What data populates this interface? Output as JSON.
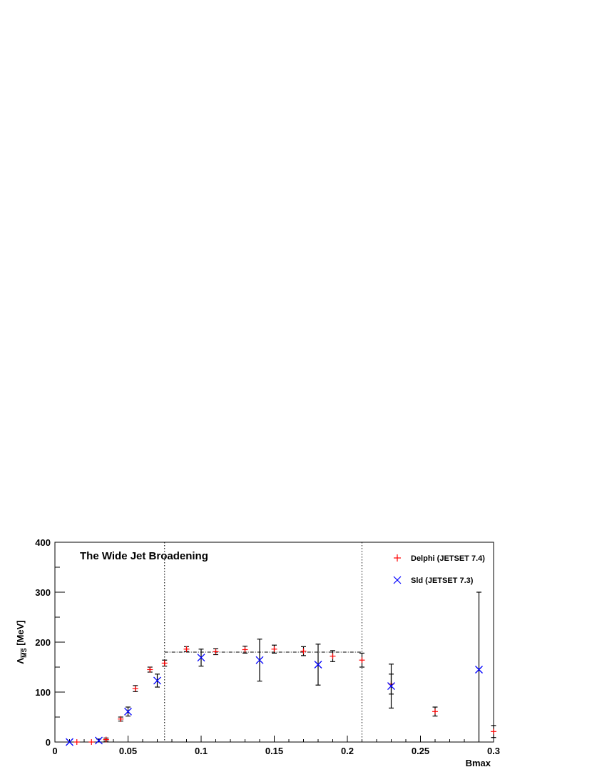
{
  "chart_data": {
    "type": "scatter",
    "title": "The Wide Jet Broadening",
    "xlabel": "Bmax",
    "ylabel_symbol": "Λ",
    "ylabel_sub": "MS",
    "ylabel_unit": "[MeV]",
    "xlim": [
      0,
      0.3
    ],
    "ylim": [
      0,
      400
    ],
    "x_ticks": [
      0,
      0.05,
      0.1,
      0.15,
      0.2,
      0.25,
      0.3
    ],
    "x_tick_labels": [
      "0",
      "0.05",
      "0.1",
      "0.15",
      "0.2",
      "0.25",
      "0.3"
    ],
    "y_ticks": [
      0,
      100,
      200,
      300,
      400
    ],
    "y_tick_labels": [
      "0",
      "100",
      "200",
      "300",
      "400"
    ],
    "grid": false,
    "legend_position": "top-right",
    "vertical_lines": [
      0.075,
      0.21
    ],
    "fit_line": {
      "x": [
        0.075,
        0.21
      ],
      "y": 180
    },
    "series": [
      {
        "name": "Delphi (JETSET 7.4)",
        "marker": "plus",
        "color": "#ff0000",
        "points": [
          {
            "x": 0.015,
            "y": 0,
            "err": 0
          },
          {
            "x": 0.025,
            "y": 0,
            "err": 0
          },
          {
            "x": 0.035,
            "y": 5,
            "err": 3
          },
          {
            "x": 0.045,
            "y": 46,
            "err": 4
          },
          {
            "x": 0.055,
            "y": 107,
            "err": 6
          },
          {
            "x": 0.065,
            "y": 145,
            "err": 5
          },
          {
            "x": 0.075,
            "y": 158,
            "err": 6
          },
          {
            "x": 0.09,
            "y": 186,
            "err": 5
          },
          {
            "x": 0.11,
            "y": 181,
            "err": 6
          },
          {
            "x": 0.13,
            "y": 185,
            "err": 7
          },
          {
            "x": 0.15,
            "y": 186,
            "err": 8
          },
          {
            "x": 0.17,
            "y": 182,
            "err": 9
          },
          {
            "x": 0.19,
            "y": 172,
            "err": 11
          },
          {
            "x": 0.21,
            "y": 164,
            "err": 14
          },
          {
            "x": 0.23,
            "y": 116,
            "err": 20
          },
          {
            "x": 0.26,
            "y": 61,
            "err": 9
          },
          {
            "x": 0.3,
            "y": 21,
            "err": 12
          }
        ]
      },
      {
        "name": "Sld (JETSET 7.3)",
        "marker": "cross",
        "color": "#0000ff",
        "points": [
          {
            "x": 0.01,
            "y": 0,
            "err": 0
          },
          {
            "x": 0.03,
            "y": 3,
            "err": 3
          },
          {
            "x": 0.05,
            "y": 61,
            "err": 9
          },
          {
            "x": 0.07,
            "y": 123,
            "err": 13
          },
          {
            "x": 0.1,
            "y": 169,
            "err": 17
          },
          {
            "x": 0.14,
            "y": 164,
            "err": 42
          },
          {
            "x": 0.18,
            "y": 155,
            "err": 41
          },
          {
            "x": 0.23,
            "y": 112,
            "err": 44
          },
          {
            "x": 0.29,
            "y": 145,
            "err": 155
          }
        ]
      }
    ]
  }
}
